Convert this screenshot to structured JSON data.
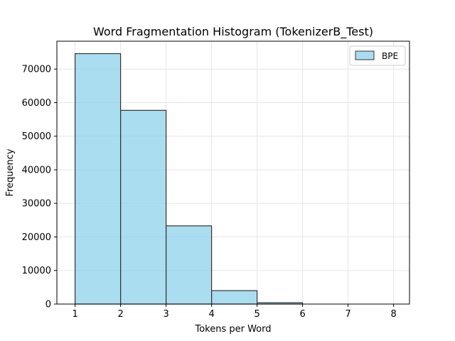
{
  "chart_data": {
    "type": "bar",
    "title": "Word Fragmentation Histogram (TokenizerB_Test)",
    "xlabel": "Tokens per Word",
    "ylabel": "Frequency",
    "bin_edges": [
      1,
      2,
      3,
      4,
      5,
      6,
      7,
      8
    ],
    "series": [
      {
        "name": "BPE",
        "values": [
          74600,
          57700,
          23300,
          4000,
          400,
          0,
          0
        ]
      }
    ],
    "xticks": [
      1,
      2,
      3,
      4,
      5,
      6,
      7,
      8
    ],
    "yticks": [
      0,
      10000,
      20000,
      30000,
      40000,
      50000,
      60000,
      70000
    ],
    "xlim": [
      0.6,
      8.35
    ],
    "ylim": [
      0,
      78300
    ],
    "grid": true,
    "legend": "top-right",
    "colors": {
      "bar_fill": "#87ceeb",
      "bar_stroke": "#333333",
      "grid": "#e6e6e6",
      "axis": "#000000"
    }
  }
}
